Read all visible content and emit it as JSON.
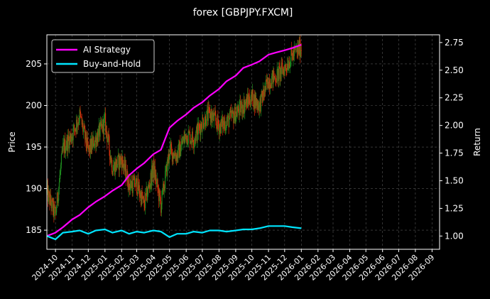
{
  "chart_data": {
    "type": "line",
    "title": "forex [GBPJPY.FXCM]",
    "ylabel": "Price",
    "y2label": "Return",
    "xlim": [
      "2024-09-15",
      "2026-09-15"
    ],
    "ylim": [
      182.7,
      208.5
    ],
    "y2lim": [
      0.88,
      2.82
    ],
    "x_ticks": [
      "2024-10",
      "2024-11",
      "2024-12",
      "2025-01",
      "2025-02",
      "2025-03",
      "2025-04",
      "2025-05",
      "2025-06",
      "2025-07",
      "2025-08",
      "2025-09",
      "2025-10",
      "2025-11",
      "2025-12",
      "2026-01",
      "2026-02",
      "2026-03",
      "2026-04",
      "2026-05",
      "2026-06",
      "2026-07",
      "2026-08",
      "2026-09"
    ],
    "y_ticks": [
      185,
      190,
      195,
      200,
      205
    ],
    "y2_ticks": [
      "1.00",
      "1.25",
      "1.50",
      "1.75",
      "2.00",
      "2.25",
      "2.50",
      "2.75"
    ],
    "grid": true,
    "legend": "top-left",
    "colors": {
      "background": "#000000",
      "up": "#1e8a1e",
      "down": "#d42a0a",
      "strategy": "#ff00ff",
      "hold": "#00e5ff",
      "grid": "#555555"
    },
    "series": [
      {
        "name": "AI Strategy",
        "axis": "right",
        "x": [
          "2024-09-15",
          "2024-10-01",
          "2024-10-15",
          "2024-11-01",
          "2024-11-15",
          "2024-12-01",
          "2024-12-15",
          "2025-01-01",
          "2025-01-15",
          "2025-02-01",
          "2025-02-15",
          "2025-03-01",
          "2025-03-15",
          "2025-04-01",
          "2025-04-15",
          "2025-05-01",
          "2025-05-15",
          "2025-06-01",
          "2025-06-15",
          "2025-07-01",
          "2025-07-15",
          "2025-08-01",
          "2025-08-15",
          "2025-09-01",
          "2025-09-15",
          "2025-10-01",
          "2025-10-15",
          "2025-11-01",
          "2025-11-15",
          "2025-12-01",
          "2025-12-15",
          "2026-01-01"
        ],
        "values": [
          1.0,
          1.03,
          1.08,
          1.15,
          1.19,
          1.26,
          1.31,
          1.36,
          1.41,
          1.46,
          1.55,
          1.61,
          1.66,
          1.74,
          1.78,
          1.98,
          2.04,
          2.1,
          2.16,
          2.21,
          2.27,
          2.33,
          2.4,
          2.45,
          2.52,
          2.55,
          2.58,
          2.64,
          2.66,
          2.68,
          2.7,
          2.73
        ]
      },
      {
        "name": "Buy-and-Hold",
        "axis": "right",
        "x": [
          "2024-09-15",
          "2024-10-01",
          "2024-10-15",
          "2024-11-01",
          "2024-11-15",
          "2024-12-01",
          "2024-12-15",
          "2025-01-01",
          "2025-01-15",
          "2025-02-01",
          "2025-02-15",
          "2025-03-01",
          "2025-03-15",
          "2025-04-01",
          "2025-04-15",
          "2025-05-01",
          "2025-05-15",
          "2025-06-01",
          "2025-06-15",
          "2025-07-01",
          "2025-07-15",
          "2025-08-01",
          "2025-08-15",
          "2025-09-01",
          "2025-09-15",
          "2025-10-01",
          "2025-10-15",
          "2025-11-01",
          "2025-11-15",
          "2025-12-01",
          "2025-12-15",
          "2026-01-01"
        ],
        "values": [
          1.0,
          0.97,
          1.03,
          1.04,
          1.05,
          1.02,
          1.05,
          1.06,
          1.03,
          1.05,
          1.02,
          1.04,
          1.03,
          1.05,
          1.04,
          0.99,
          1.02,
          1.02,
          1.04,
          1.03,
          1.05,
          1.05,
          1.04,
          1.05,
          1.06,
          1.06,
          1.07,
          1.09,
          1.09,
          1.09,
          1.08,
          1.07
        ]
      }
    ],
    "price": {
      "x": [
        "2024-09-15",
        "2024-10-01",
        "2024-10-15",
        "2024-11-01",
        "2024-11-15",
        "2024-12-01",
        "2024-12-15",
        "2025-01-01",
        "2025-01-15",
        "2025-02-01",
        "2025-02-15",
        "2025-03-01",
        "2025-03-15",
        "2025-04-01",
        "2025-04-15",
        "2025-05-01",
        "2025-05-15",
        "2025-06-01",
        "2025-06-15",
        "2025-07-01",
        "2025-07-15",
        "2025-08-01",
        "2025-08-15",
        "2025-09-01",
        "2025-09-15",
        "2025-10-01",
        "2025-10-15",
        "2025-11-01",
        "2025-11-15",
        "2025-12-01",
        "2025-12-15",
        "2026-01-01"
      ],
      "values": [
        189.5,
        186.8,
        194.8,
        196.5,
        198.8,
        194.5,
        196.0,
        198.0,
        192.5,
        193.5,
        190.5,
        190.5,
        188.0,
        192.5,
        188.0,
        194.5,
        194.0,
        196.5,
        196.0,
        198.0,
        199.0,
        197.5,
        198.0,
        199.0,
        200.0,
        201.0,
        200.0,
        203.0,
        203.5,
        204.5,
        206.0,
        207.0
      ]
    }
  }
}
